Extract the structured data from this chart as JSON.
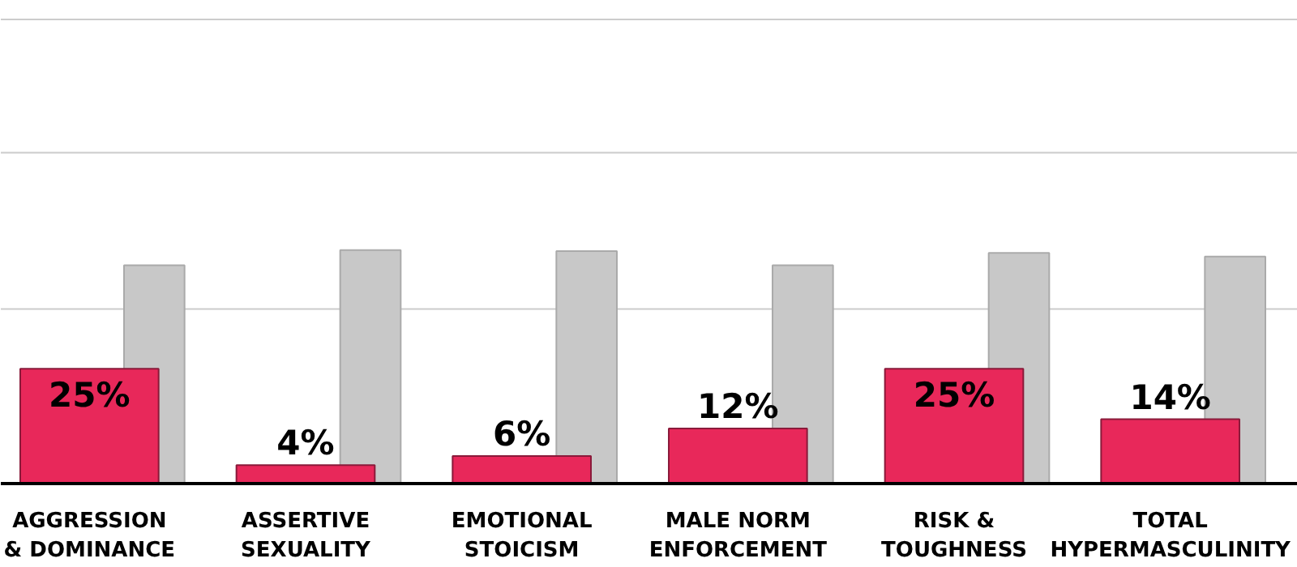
{
  "chart_data": {
    "type": "bar",
    "categories": [
      "AGGRESSION\n& DOMINANCE",
      "ASSERTIVE\nSEXUALITY",
      "EMOTIONAL\nSTOICISM",
      "MALE NORM\nENFORCEMENT",
      "RISK &\nTOUGHNESS",
      "TOTAL\nHYPERMASCULINITY"
    ],
    "series": [
      {
        "color": "#e8285a",
        "values": [
          25,
          4,
          6,
          12,
          25,
          14
        ],
        "value_labels": [
          "25%",
          "4%",
          "6%",
          "12%",
          "25%",
          "14%"
        ]
      },
      {
        "color": "#c8c8c8",
        "values": [
          47.5,
          50.8,
          50.6,
          47.5,
          50.2,
          49.4
        ]
      }
    ],
    "ref_lines": [
      {
        "axis": "y",
        "value": 38,
        "color": "#cccccc"
      },
      {
        "axis": "y",
        "value": 72,
        "color": "#cccccc"
      },
      {
        "axis": "y",
        "value": 101,
        "color": "#cccccc"
      }
    ],
    "tick_labels": "x"
  }
}
